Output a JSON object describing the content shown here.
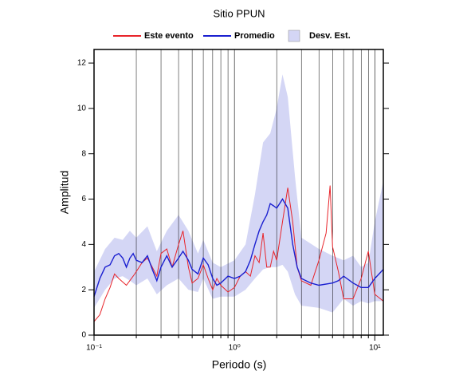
{
  "chart_data": {
    "type": "line",
    "title": "Sitio PPUN",
    "x_label": "Periodo (s)",
    "y_label": "Amplitud",
    "x_scale": "log",
    "xlim": [
      0.1,
      11.5
    ],
    "ylim": [
      0,
      12.6
    ],
    "xticks": [
      {
        "value": 0.1,
        "label": "10⁻¹"
      },
      {
        "value": 1,
        "label": "10⁰"
      },
      {
        "value": 10,
        "label": "10¹"
      }
    ],
    "xgrid": [
      0.2,
      0.3,
      0.4,
      0.5,
      0.6,
      0.7,
      0.8,
      0.9,
      2,
      3,
      4,
      5,
      6,
      7,
      8,
      9
    ],
    "yticks": [
      0,
      2,
      4,
      6,
      8,
      10,
      12
    ],
    "legend": "top",
    "band": {
      "name": "Desv. Est.",
      "color": "#d4d6f5",
      "x": [
        0.1,
        0.12,
        0.14,
        0.16,
        0.18,
        0.2,
        0.24,
        0.28,
        0.33,
        0.4,
        0.47,
        0.55,
        0.6,
        0.7,
        0.8,
        1.0,
        1.2,
        1.4,
        1.6,
        1.8,
        2.0,
        2.2,
        2.4,
        2.7,
        3.0,
        4,
        5,
        6,
        7,
        8,
        9,
        10,
        11.5
      ],
      "upper": [
        2.8,
        3.8,
        4.3,
        4.2,
        4.6,
        4.3,
        4.8,
        3.7,
        4.6,
        5.3,
        4.6,
        3.6,
        4.2,
        3.2,
        3.0,
        3.3,
        4.0,
        6.2,
        8.5,
        8.9,
        10.0,
        11.5,
        10.5,
        7.0,
        4.3,
        3.8,
        3.5,
        3.3,
        3.5,
        3.0,
        3.2,
        5.0,
        6.8
      ],
      "lower": [
        1.2,
        2.0,
        2.5,
        2.6,
        2.4,
        2.2,
        2.5,
        1.8,
        2.2,
        2.5,
        2.0,
        1.9,
        2.5,
        1.6,
        1.7,
        1.7,
        2.0,
        2.5,
        2.9,
        3.0,
        3.0,
        3.1,
        2.8,
        1.8,
        1.3,
        1.2,
        1.0,
        1.6,
        1.3,
        1.5,
        1.4,
        1.5,
        1.5
      ]
    },
    "series": [
      {
        "name": "Este evento",
        "color": "#e8242a",
        "x": [
          0.1,
          0.11,
          0.12,
          0.13,
          0.14,
          0.15,
          0.17,
          0.19,
          0.2,
          0.22,
          0.24,
          0.26,
          0.28,
          0.3,
          0.33,
          0.36,
          0.4,
          0.43,
          0.47,
          0.5,
          0.55,
          0.6,
          0.65,
          0.7,
          0.75,
          0.8,
          0.9,
          1.0,
          1.1,
          1.2,
          1.3,
          1.4,
          1.5,
          1.6,
          1.7,
          1.8,
          1.9,
          2.0,
          2.2,
          2.4,
          2.6,
          2.8,
          3.0,
          3.5,
          4.0,
          4.5,
          4.8,
          5.0,
          5.5,
          6,
          7,
          8,
          9,
          10,
          11.5
        ],
        "values": [
          0.6,
          0.9,
          1.6,
          2.1,
          2.7,
          2.5,
          2.2,
          2.6,
          2.8,
          3.2,
          3.4,
          3.0,
          2.6,
          3.6,
          3.8,
          3.0,
          4.0,
          4.6,
          3.0,
          2.3,
          2.5,
          3.1,
          2.5,
          2.0,
          2.5,
          2.2,
          1.9,
          2.1,
          2.6,
          2.8,
          2.6,
          3.5,
          3.2,
          4.5,
          3.0,
          3.0,
          3.7,
          3.3,
          5.0,
          6.5,
          5.0,
          3.0,
          2.4,
          2.2,
          3.3,
          4.5,
          6.6,
          3.9,
          2.8,
          1.6,
          1.6,
          2.5,
          3.7,
          1.8,
          1.5
        ]
      },
      {
        "name": "Promedio",
        "color": "#1a1fd0",
        "x": [
          0.1,
          0.11,
          0.12,
          0.13,
          0.14,
          0.15,
          0.16,
          0.17,
          0.18,
          0.19,
          0.2,
          0.22,
          0.24,
          0.26,
          0.28,
          0.3,
          0.33,
          0.36,
          0.4,
          0.43,
          0.47,
          0.5,
          0.55,
          0.6,
          0.65,
          0.7,
          0.75,
          0.8,
          0.9,
          1.0,
          1.1,
          1.2,
          1.3,
          1.4,
          1.5,
          1.6,
          1.7,
          1.8,
          1.9,
          2.0,
          2.2,
          2.4,
          2.6,
          2.8,
          3.0,
          3.5,
          4.0,
          5.0,
          5.5,
          6,
          7,
          8,
          9,
          10,
          11.5
        ],
        "values": [
          1.7,
          2.5,
          3.0,
          3.1,
          3.5,
          3.6,
          3.4,
          3.0,
          3.4,
          3.6,
          3.3,
          3.2,
          3.5,
          2.9,
          2.4,
          3.0,
          3.5,
          3.0,
          3.4,
          3.7,
          3.3,
          2.9,
          2.7,
          3.4,
          3.1,
          2.5,
          2.2,
          2.3,
          2.6,
          2.5,
          2.6,
          2.8,
          3.3,
          4.0,
          4.6,
          5.0,
          5.3,
          5.8,
          5.7,
          5.6,
          6.0,
          5.6,
          4.0,
          3.0,
          2.5,
          2.3,
          2.2,
          2.3,
          2.4,
          2.6,
          2.3,
          2.1,
          2.1,
          2.5,
          2.9
        ]
      }
    ]
  }
}
